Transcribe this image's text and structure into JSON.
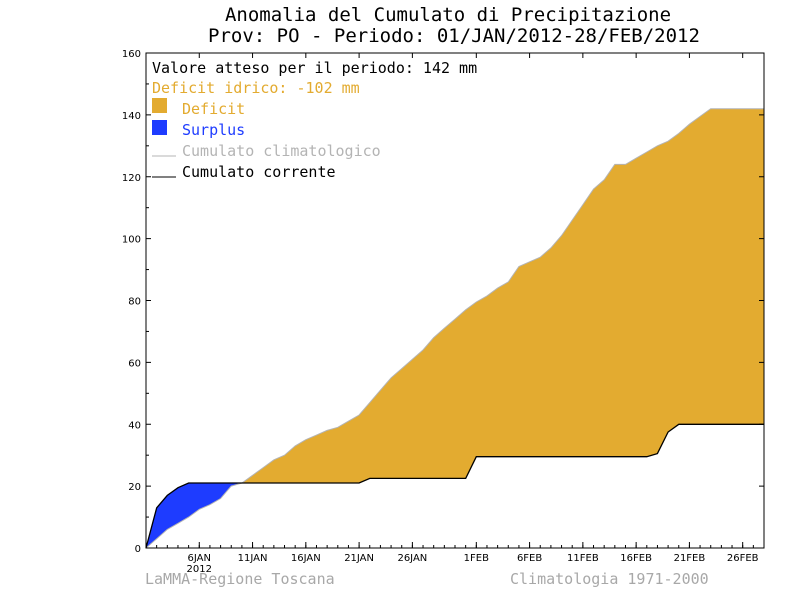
{
  "colors": {
    "deficit": "#e3ab30",
    "surplus": "#1e3cff",
    "climatological": "#b4b4b4",
    "current": "#000000",
    "deficit_text": "#e3ab30"
  },
  "chart_data": {
    "type": "area",
    "title": "Anomalia del Cumulato di Precipitazione",
    "subtitle": "Prov: PO - Periodo: 01/JAN/2012-28/FEB/2012",
    "ylim": [
      0,
      160
    ],
    "yticks": [
      0,
      20,
      40,
      60,
      80,
      100,
      120,
      140,
      160
    ],
    "xlim_days": [
      1,
      59
    ],
    "xticks": [
      {
        "day": 6,
        "label": "6JAN"
      },
      {
        "day": 11,
        "label": "11JAN"
      },
      {
        "day": 16,
        "label": "16JAN"
      },
      {
        "day": 21,
        "label": "21JAN"
      },
      {
        "day": 26,
        "label": "26JAN"
      },
      {
        "day": 32,
        "label": "1FEB"
      },
      {
        "day": 37,
        "label": "6FEB"
      },
      {
        "day": 42,
        "label": "11FEB"
      },
      {
        "day": 47,
        "label": "16FEB"
      },
      {
        "day": 52,
        "label": "21FEB"
      },
      {
        "day": 57,
        "label": "26FEB"
      }
    ],
    "year_label": "2012",
    "grid": false,
    "legend_position": "top-left",
    "legend": {
      "expected": "Valore atteso per il periodo: 142 mm",
      "deficit_total": "Deficit idrico: -102 mm",
      "deficit": "Deficit",
      "surplus": "Surplus",
      "climatological": "Cumulato climatologico",
      "current": "Cumulato corrente"
    },
    "series": [
      {
        "name": "Cumulato climatologico",
        "x": [
          1,
          2,
          3,
          4,
          5,
          6,
          7,
          8,
          9,
          10,
          11,
          12,
          13,
          14,
          15,
          16,
          17,
          18,
          19,
          20,
          21,
          22,
          23,
          24,
          25,
          26,
          27,
          28,
          29,
          30,
          31,
          32,
          33,
          34,
          35,
          36,
          37,
          38,
          39,
          40,
          41,
          42,
          43,
          44,
          45,
          46,
          47,
          48,
          49,
          50,
          51,
          52,
          53,
          54,
          55,
          56,
          57,
          58,
          59
        ],
        "values": [
          0,
          3,
          6,
          8,
          10,
          12.5,
          14,
          16,
          20,
          21,
          23.5,
          26,
          28.5,
          30,
          33,
          35,
          36.5,
          38,
          39,
          41,
          43,
          47,
          51,
          55,
          58,
          61,
          64,
          68,
          71,
          74,
          77,
          79.5,
          81.5,
          84,
          86,
          91,
          92.5,
          94,
          97,
          101,
          106,
          111,
          116,
          119,
          124,
          124,
          126,
          128,
          130,
          131.5,
          134,
          137,
          139.5,
          142,
          142,
          142,
          142,
          142,
          142
        ]
      },
      {
        "name": "Cumulato corrente",
        "x": [
          1,
          2,
          3,
          4,
          5,
          6,
          7,
          8,
          9,
          10,
          11,
          12,
          13,
          14,
          15,
          16,
          17,
          18,
          19,
          20,
          21,
          22,
          23,
          24,
          25,
          26,
          27,
          28,
          29,
          30,
          31,
          32,
          33,
          34,
          35,
          36,
          37,
          38,
          39,
          40,
          41,
          42,
          43,
          44,
          45,
          46,
          47,
          48,
          49,
          50,
          51,
          52,
          53,
          54,
          55,
          56,
          57,
          58,
          59
        ],
        "values": [
          0,
          13,
          17,
          19.5,
          21,
          21,
          21,
          21,
          21,
          21,
          21,
          21,
          21,
          21,
          21,
          21,
          21,
          21,
          21,
          21,
          21,
          22.5,
          22.5,
          22.5,
          22.5,
          22.5,
          22.5,
          22.5,
          22.5,
          22.5,
          22.5,
          29.5,
          29.5,
          29.5,
          29.5,
          29.5,
          29.5,
          29.5,
          29.5,
          29.5,
          29.5,
          29.5,
          29.5,
          29.5,
          29.5,
          29.5,
          29.5,
          29.5,
          30.5,
          37.5,
          40,
          40,
          40,
          40,
          40,
          40,
          40,
          40,
          40
        ]
      }
    ]
  },
  "footer": {
    "left": "LaMMA-Regione Toscana",
    "right": "Climatologia 1971-2000"
  }
}
